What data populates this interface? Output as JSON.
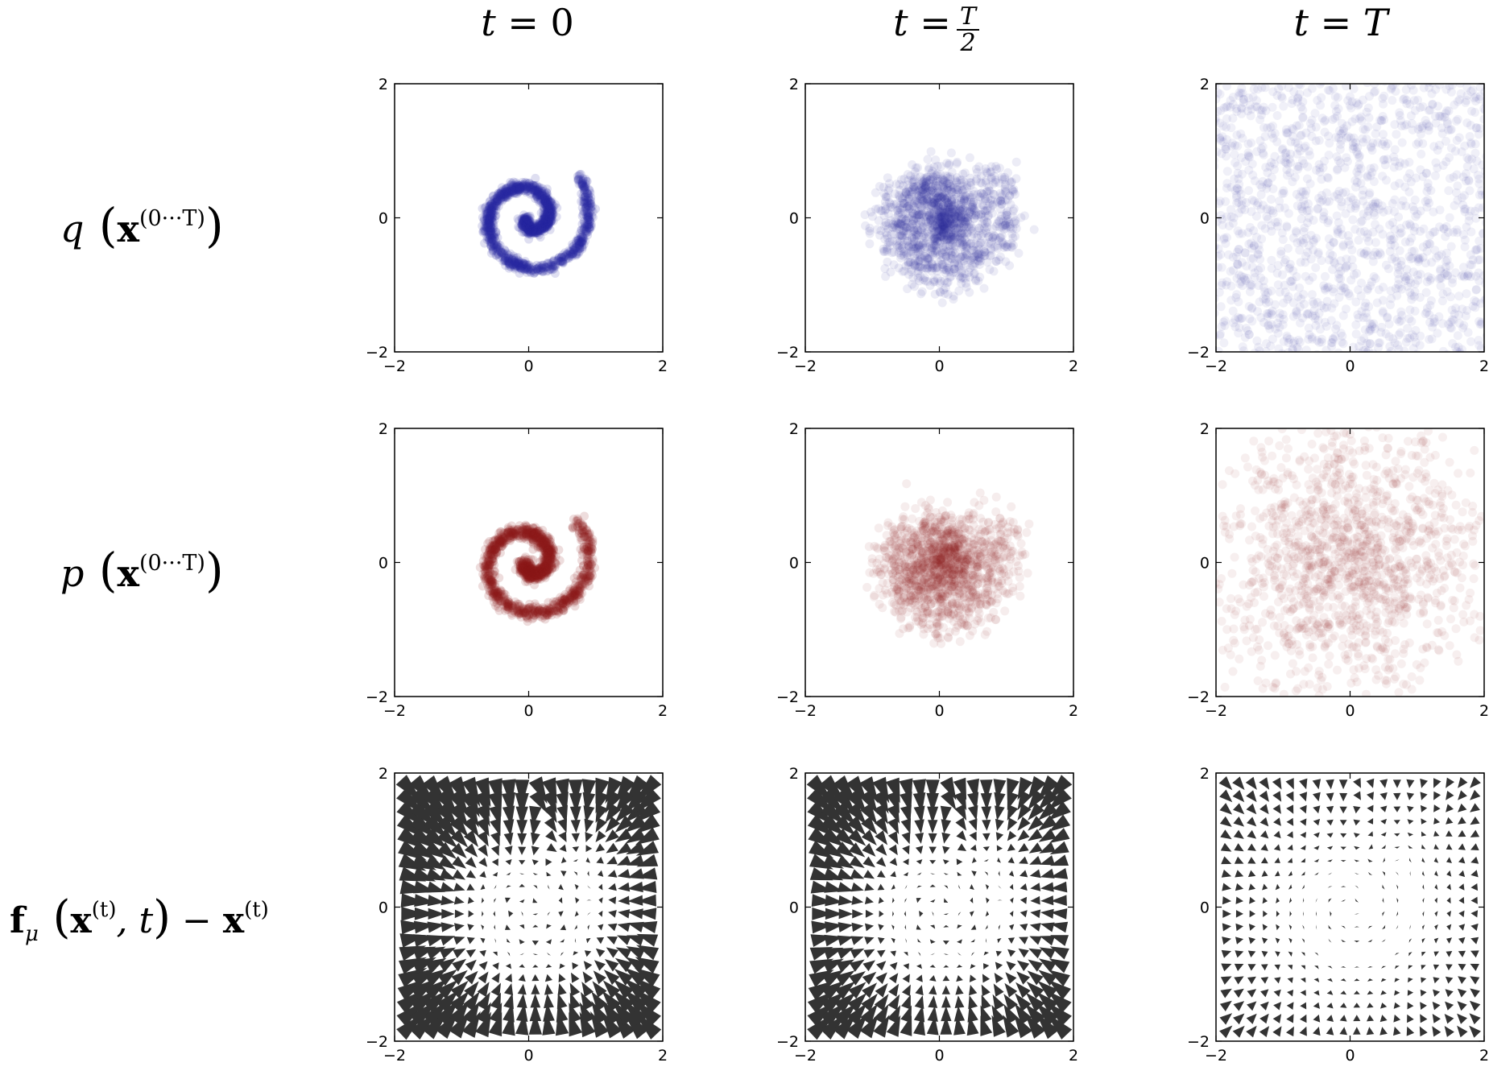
{
  "column_titles": [
    {
      "t": "t",
      "eq": " = ",
      "val": "0"
    },
    {
      "t": "t",
      "eq": " = ",
      "num": "T",
      "den": "2"
    },
    {
      "t": "t",
      "eq": " = ",
      "val": "T"
    }
  ],
  "row_labels": [
    {
      "fn": "q",
      "arg": "x",
      "sup": "(0···T)"
    },
    {
      "fn": "p",
      "arg": "x",
      "sup": "(0···T)"
    },
    {
      "fn": "f",
      "sub": "μ",
      "arg": "x",
      "sup": "(t)",
      "tail": ", t",
      "minus": " − ",
      "arg2": "x",
      "sup2": "(t)"
    }
  ],
  "colors": {
    "q_points": "#2a2aa0",
    "p_points": "#8b1a1a",
    "arrows": "#333333",
    "frame": "#000000"
  },
  "chart_data": [
    {
      "type": "scatter",
      "row": 0,
      "col": 0,
      "distribution": "q",
      "time": "t = 0",
      "shape": "swiss-roll",
      "noise": 0.04,
      "alpha": 0.15,
      "xlim": [
        -2,
        2
      ],
      "ylim": [
        -2,
        2
      ],
      "xticks": [
        "−2",
        "0",
        "2"
      ],
      "yticks": [
        "−2",
        "0",
        "2"
      ]
    },
    {
      "type": "scatter",
      "row": 0,
      "col": 1,
      "distribution": "q",
      "time": "t = T/2",
      "shape": "swiss-roll",
      "noise": 0.2,
      "alpha": 0.09,
      "xlim": [
        -2,
        2
      ],
      "ylim": [
        -2,
        2
      ],
      "xticks": [
        "−2",
        "0",
        "2"
      ],
      "yticks": [
        "−2",
        "0",
        "2"
      ]
    },
    {
      "type": "scatter",
      "row": 0,
      "col": 2,
      "distribution": "q",
      "time": "t = T",
      "shape": "uniform-noise",
      "alpha": 0.07,
      "xlim": [
        -2,
        2
      ],
      "ylim": [
        -2,
        2
      ],
      "xticks": [
        "−2",
        "0",
        "2"
      ],
      "yticks": [
        "−2",
        "0",
        "2"
      ]
    },
    {
      "type": "scatter",
      "row": 1,
      "col": 0,
      "distribution": "p",
      "time": "t = 0",
      "shape": "swiss-roll",
      "noise": 0.05,
      "alpha": 0.15,
      "xlim": [
        -2,
        2
      ],
      "ylim": [
        -2,
        2
      ],
      "xticks": [
        "−2",
        "0",
        "2"
      ],
      "yticks": [
        "−2",
        "0",
        "2"
      ]
    },
    {
      "type": "scatter",
      "row": 1,
      "col": 1,
      "distribution": "p",
      "time": "t = T/2",
      "shape": "swiss-roll",
      "noise": 0.22,
      "alpha": 0.08,
      "xlim": [
        -2,
        2
      ],
      "ylim": [
        -2,
        2
      ],
      "xticks": [
        "−2",
        "0",
        "2"
      ],
      "yticks": [
        "−2",
        "0",
        "2"
      ]
    },
    {
      "type": "scatter",
      "row": 1,
      "col": 2,
      "distribution": "p",
      "time": "t = T",
      "shape": "gaussian-noise",
      "alpha": 0.07,
      "xlim": [
        -2,
        2
      ],
      "ylim": [
        -2,
        2
      ],
      "xticks": [
        "−2",
        "0",
        "2"
      ],
      "yticks": [
        "−2",
        "0",
        "2"
      ]
    },
    {
      "type": "quiver",
      "row": 2,
      "col": 0,
      "field": "drift",
      "time": "t = 0",
      "grid": 20,
      "strength": 1.0,
      "xlim": [
        -2,
        2
      ],
      "ylim": [
        -2,
        2
      ],
      "xticks": [
        "−2",
        "0",
        "2"
      ],
      "yticks": [
        "−2",
        "0",
        "2"
      ]
    },
    {
      "type": "quiver",
      "row": 2,
      "col": 1,
      "field": "drift",
      "time": "t = T/2",
      "grid": 20,
      "strength": 0.85,
      "xlim": [
        -2,
        2
      ],
      "ylim": [
        -2,
        2
      ],
      "xticks": [
        "−2",
        "0",
        "2"
      ],
      "yticks": [
        "−2",
        "0",
        "2"
      ]
    },
    {
      "type": "quiver",
      "row": 2,
      "col": 2,
      "field": "drift",
      "time": "t = T",
      "grid": 20,
      "strength": 0.35,
      "xlim": [
        -2,
        2
      ],
      "ylim": [
        -2,
        2
      ],
      "xticks": [
        "−2",
        "0",
        "2"
      ],
      "yticks": [
        "−2",
        "0",
        "2"
      ]
    }
  ]
}
